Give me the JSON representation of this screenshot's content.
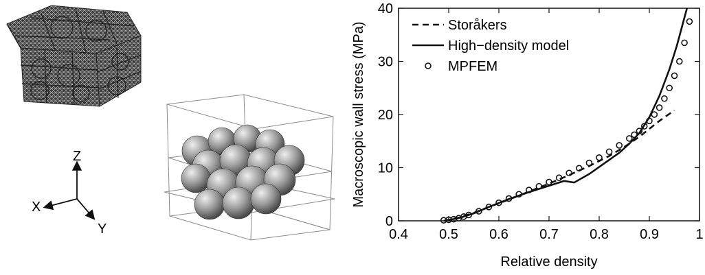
{
  "axes_triad": {
    "x_label": "X",
    "y_label": "Y",
    "z_label": "Z"
  },
  "chart_data": {
    "type": "line",
    "xlabel": "Relative density",
    "ylabel": "Macroscopic wall stress (MPa)",
    "xlim": [
      0.4,
      1.0
    ],
    "ylim": [
      0,
      40
    ],
    "xticks": [
      "0.4",
      "0.5",
      "0.6",
      "0.7",
      "0.8",
      "0.9",
      "1"
    ],
    "yticks": [
      "0",
      "10",
      "20",
      "30",
      "40"
    ],
    "legend_position": "top-left",
    "grid": false,
    "series": [
      {
        "name": "Storåkers",
        "style": "dashed",
        "color": "#111111",
        "x": [
          0.49,
          0.52,
          0.55,
          0.58,
          0.62,
          0.66,
          0.7,
          0.74,
          0.78,
          0.82,
          0.85,
          0.88,
          0.9,
          0.92,
          0.95
        ],
        "y": [
          0.0,
          0.6,
          1.5,
          2.6,
          4.0,
          5.5,
          7.0,
          8.6,
          10.3,
          12.2,
          13.9,
          15.8,
          17.3,
          18.8,
          20.8
        ]
      },
      {
        "name": "High−density model",
        "style": "solid",
        "color": "#111111",
        "x": [
          0.49,
          0.52,
          0.55,
          0.58,
          0.62,
          0.66,
          0.7,
          0.73,
          0.75,
          0.78,
          0.81,
          0.84,
          0.86,
          0.88,
          0.9,
          0.92,
          0.94,
          0.955,
          0.965,
          0.975
        ],
        "y": [
          0.0,
          0.5,
          1.4,
          2.6,
          4.1,
          5.4,
          6.6,
          7.5,
          7.2,
          8.8,
          10.8,
          12.8,
          14.5,
          16.5,
          19.5,
          23.5,
          28.5,
          33.0,
          36.5,
          40.0
        ]
      },
      {
        "name": "MPFEM",
        "style": "markers",
        "color": "#111111",
        "x": [
          0.49,
          0.5,
          0.51,
          0.52,
          0.53,
          0.54,
          0.56,
          0.58,
          0.6,
          0.62,
          0.64,
          0.66,
          0.68,
          0.7,
          0.72,
          0.74,
          0.76,
          0.78,
          0.8,
          0.82,
          0.84,
          0.86,
          0.87,
          0.88,
          0.89,
          0.9,
          0.91,
          0.92,
          0.93,
          0.94,
          0.95,
          0.96,
          0.97,
          0.98
        ],
        "y": [
          0.1,
          0.2,
          0.3,
          0.5,
          0.8,
          1.1,
          1.8,
          2.6,
          3.4,
          4.2,
          5.0,
          5.8,
          6.5,
          7.3,
          8.1,
          9.0,
          9.9,
          10.9,
          11.9,
          13.0,
          14.2,
          15.5,
          16.2,
          16.9,
          17.8,
          18.8,
          20.0,
          21.3,
          23.0,
          25.0,
          27.3,
          30.0,
          33.5,
          37.5
        ]
      }
    ]
  }
}
